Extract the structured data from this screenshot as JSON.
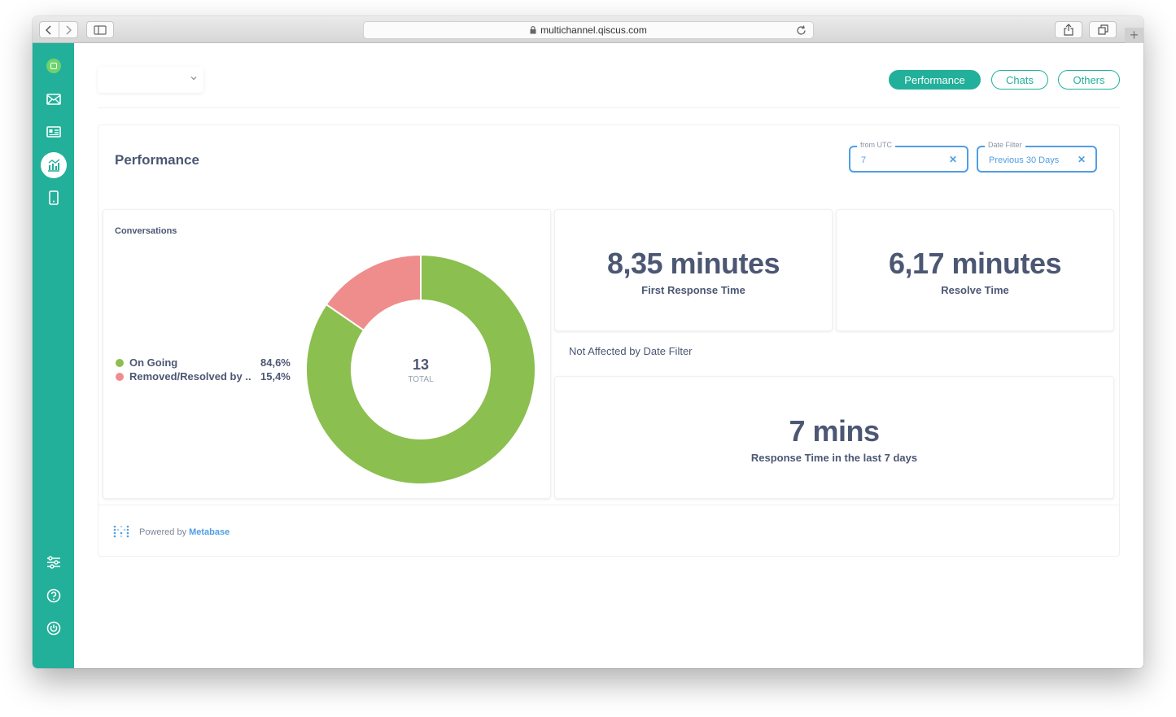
{
  "browser": {
    "url": "multichannel.qiscus.com"
  },
  "tabs": [
    "Performance",
    "Chats",
    "Others"
  ],
  "dashboard": {
    "title": "Performance",
    "filters": [
      {
        "label": "from UTC",
        "value": "7"
      },
      {
        "label": "Date Filter",
        "value": "Previous 30 Days"
      }
    ],
    "conversations": {
      "title": "Conversations",
      "total": "13",
      "total_label": "TOTAL",
      "legend": [
        {
          "name": "On Going",
          "percent": "84,6%",
          "color": "#8bbf4f"
        },
        {
          "name": "Removed/Resolved by ...",
          "percent": "15,4%",
          "color": "#ef8c8c"
        }
      ]
    },
    "first_response": {
      "value": "8,35 minutes",
      "label": "First Response Time"
    },
    "resolve_time": {
      "value": "6,17 minutes",
      "label": "Resolve Time"
    },
    "note": "Not Affected by Date Filter",
    "last7": {
      "value": "7 mins",
      "label": "Response Time in the last 7 days"
    },
    "footer": {
      "powered_by": "Powered by",
      "brand": "Metabase"
    }
  },
  "chart_data": {
    "type": "pie",
    "title": "Conversations",
    "categories": [
      "On Going",
      "Removed/Resolved by ..."
    ],
    "values": [
      84.6,
      15.4
    ],
    "colors": [
      "#8bbf4f",
      "#ef8c8c"
    ],
    "total": 13
  },
  "sidebar_icons": [
    "logo-icon",
    "inbox-icon",
    "contacts-icon",
    "analytics-icon",
    "mobile-icon",
    "settings-sliders-icon",
    "help-icon",
    "power-icon"
  ]
}
